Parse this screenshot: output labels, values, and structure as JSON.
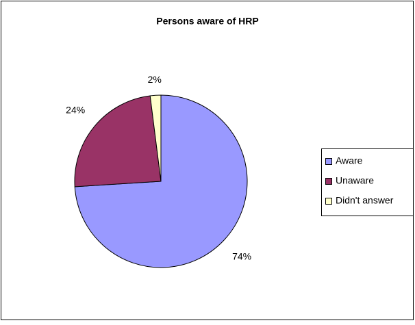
{
  "chart_data": {
    "type": "pie",
    "title": "Persons aware of HRP",
    "categories": [
      "Aware",
      "Unaware",
      "Didn't answer"
    ],
    "values": [
      74,
      24,
      2
    ],
    "value_labels": [
      "74%",
      "24%",
      "2%"
    ],
    "colors": [
      "#9999ff",
      "#993366",
      "#ffffcc"
    ],
    "legend": "right"
  }
}
